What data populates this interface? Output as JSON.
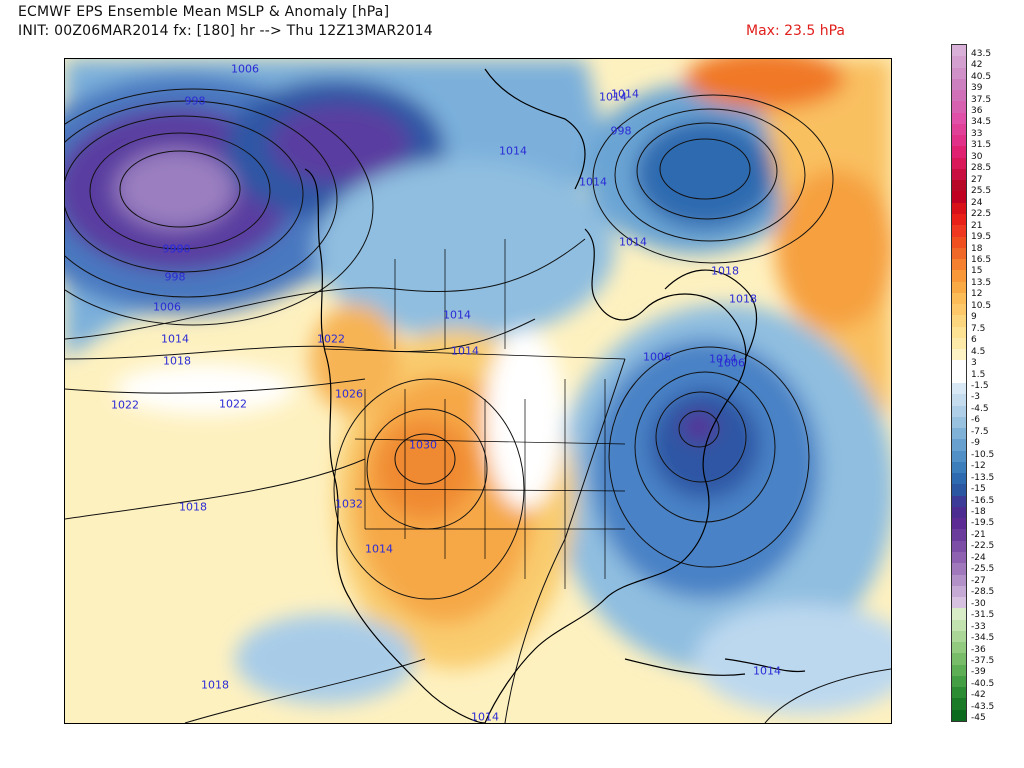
{
  "header": {
    "title_line1": "ECMWF EPS Ensemble Mean MSLP & Anomaly [hPa]",
    "title_line2": "INIT: 00Z06MAR2014 fx: [180] hr --> Thu 12Z13MAR2014",
    "max_label": "Max: 23.5 hPa"
  },
  "map": {
    "isobar_labels": [
      "1006",
      "998",
      "990",
      "998",
      "1006",
      "1014",
      "1018",
      "1022",
      "1022",
      "1018",
      "1014",
      "1014",
      "1022",
      "1026",
      "1030",
      "1032",
      "1014",
      "1018",
      "1014",
      "1014",
      "1014",
      "1014",
      "998",
      "1014",
      "1014",
      "1006",
      "1018",
      "1018",
      "1006",
      "1014",
      "1014",
      "990"
    ],
    "colors": {
      "land_outline": "#000000",
      "isobar": "#111111",
      "isobar_label": "#2b2bd6"
    }
  },
  "colorbar": {
    "labels": [
      "43.5",
      "42",
      "40.5",
      "39",
      "37.5",
      "36",
      "34.5",
      "33",
      "31.5",
      "30",
      "28.5",
      "27",
      "25.5",
      "24",
      "22.5",
      "21",
      "19.5",
      "18",
      "16.5",
      "15",
      "13.5",
      "12",
      "10.5",
      "9",
      "7.5",
      "6",
      "4.5",
      "3",
      "1.5",
      "-1.5",
      "-3",
      "-4.5",
      "-6",
      "-7.5",
      "-9",
      "-10.5",
      "-12",
      "-13.5",
      "-15",
      "-16.5",
      "-18",
      "-19.5",
      "-21",
      "-22.5",
      "-24",
      "-25.5",
      "-27",
      "-28.5",
      "-30",
      "-31.5",
      "-33",
      "-34.5",
      "-36",
      "-37.5",
      "-39",
      "-40.5",
      "-42",
      "-43.5",
      "-45"
    ],
    "colors": [
      "#d8b0d8",
      "#d4a0d0",
      "#d090c8",
      "#cc80c0",
      "#d070b8",
      "#d860b0",
      "#e050a8",
      "#e04098",
      "#e03088",
      "#e02070",
      "#d81858",
      "#c81040",
      "#b80828",
      "#c00020",
      "#d81018",
      "#e82018",
      "#f03820",
      "#f05020",
      "#f06828",
      "#f48030",
      "#f89838",
      "#faaa44",
      "#fcbc58",
      "#fcc86a",
      "#fcd67e",
      "#fde294",
      "#fdeaa8",
      "#fef3c4",
      "#ffffff",
      "#ffffff",
      "#d8e8f4",
      "#c4dcee",
      "#aecfe7",
      "#98c2e0",
      "#80b2d8",
      "#68a0cf",
      "#5090c6",
      "#3c7ebc",
      "#2e6ab0",
      "#2a56a2",
      "#3c3c98",
      "#4c2c90",
      "#5c2c94",
      "#6c3c9c",
      "#7c4ea6",
      "#8e62b0",
      "#a078bc",
      "#b290c8",
      "#c4aad4",
      "#d6c2e0",
      "#d8ecc8",
      "#c2e2b0",
      "#aad698",
      "#92ca80",
      "#78bc6a",
      "#5eae56",
      "#449e44",
      "#2c8c34",
      "#1a7a28",
      "#0c6a1e"
    ]
  }
}
